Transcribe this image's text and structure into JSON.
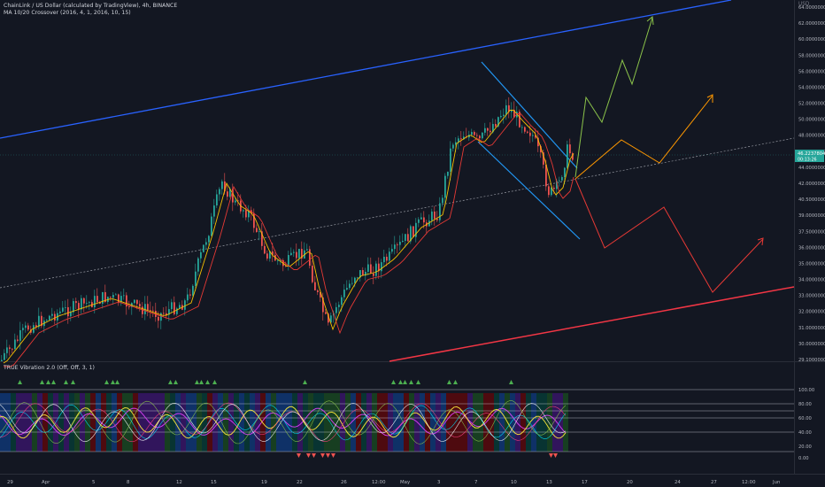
{
  "header": {
    "symbol_title": "ChainLink / US Dollar (calculated by TradingView), 4h, BINANCE",
    "indicator_1": "MA 10/20 Crossover (2016, 4, 1, 2016, 10, 15)"
  },
  "price_axis": {
    "currency": "USD",
    "ticks": [
      "64.0000000",
      "62.0000000",
      "60.0000000",
      "58.0000000",
      "56.0000000",
      "54.0000000",
      "52.0000000",
      "50.0000000",
      "48.0000000",
      "46.0000000",
      "44.0000000",
      "42.0000000",
      "40.5000000",
      "39.0000000",
      "37.5000000",
      "36.0000000",
      "35.0000000",
      "34.0000000",
      "33.0000000",
      "32.0000000",
      "31.0000000",
      "30.0000000",
      "29.1000000"
    ],
    "last_price": "46.2237804",
    "countdown": "00:13:26"
  },
  "oscillator": {
    "title": "TRUE Vibration 2.0 (Off, Off, 3, 1)",
    "ticks": [
      "100.00",
      "80.00",
      "60.00",
      "40.00",
      "20.00",
      "0.00"
    ]
  },
  "time_axis": {
    "ticks": [
      "29",
      "Apr",
      "5",
      "8",
      "12",
      "15",
      "19",
      "22",
      "26",
      "12:00",
      "May",
      "3",
      "7",
      "10",
      "13",
      "17",
      "20",
      "24",
      "27",
      "12:00",
      "Jun"
    ]
  },
  "colors": {
    "background": "#131722",
    "up_candle": "#26a69a",
    "down_candle": "#ef5350",
    "blue_channel": "#2962ff",
    "red_channel": "#f23645",
    "projection_green": "#8bc34a",
    "projection_orange": "#ff9800",
    "projection_red": "#e53935",
    "price_badge": "#26a69a"
  }
}
